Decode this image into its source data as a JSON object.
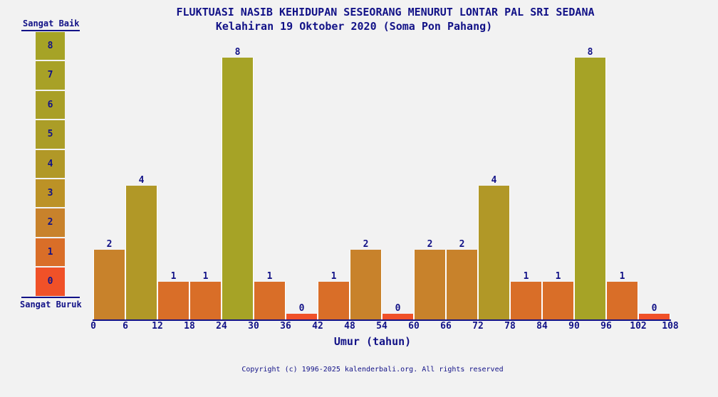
{
  "colors": {
    "background": "#f2f2f2",
    "text_navy": "#121287",
    "axis_navy": "#121287",
    "bar_separator": "#ffffff"
  },
  "chart_data": {
    "type": "bar",
    "title": "FLUKTUASI NASIB KEHIDUPAN SESEORANG MENURUT LONTAR PAL SRI SEDANA",
    "subtitle": "Kelahiran 19 Oktober 2020 (Soma Pon Pahang)",
    "xlabel": "Umur (tahun)",
    "ylabel": "",
    "x_ticks": [
      0,
      6,
      12,
      18,
      24,
      30,
      36,
      42,
      48,
      54,
      60,
      66,
      72,
      78,
      84,
      90,
      96,
      102,
      108
    ],
    "bin_width_years": 6,
    "categories": [
      "0-6",
      "6-12",
      "12-18",
      "18-24",
      "24-30",
      "30-36",
      "36-42",
      "42-48",
      "48-54",
      "54-60",
      "60-66",
      "66-72",
      "72-78",
      "78-84",
      "84-90",
      "90-96",
      "96-102",
      "102-108"
    ],
    "values": [
      2,
      4,
      1,
      1,
      8,
      1,
      0,
      1,
      2,
      0,
      2,
      2,
      4,
      1,
      1,
      8,
      1,
      0
    ],
    "ylim": [
      0,
      8
    ],
    "grid": false,
    "legend_position": "left",
    "bar_colors_by_value": {
      "0": "#f05128",
      "1": "#d96e28",
      "2": "#c8822b",
      "4": "#b19827",
      "8": "#a6a326"
    }
  },
  "legend": {
    "top_label": "Sangat Baik",
    "bottom_label": "Sangat Buruk",
    "levels": [
      {
        "value": "8",
        "color": "#a6a326"
      },
      {
        "value": "7",
        "color": "#a8a127"
      },
      {
        "value": "6",
        "color": "#a99f27"
      },
      {
        "value": "5",
        "color": "#ab9d27"
      },
      {
        "value": "4",
        "color": "#b19827"
      },
      {
        "value": "3",
        "color": "#bc9226"
      },
      {
        "value": "2",
        "color": "#c8822b"
      },
      {
        "value": "1",
        "color": "#d96e28"
      },
      {
        "value": "0",
        "color": "#f05128"
      }
    ]
  },
  "footer": {
    "copyright": "Copyright (c) 1996-2025 kalenderbali.org. All rights reserved"
  }
}
